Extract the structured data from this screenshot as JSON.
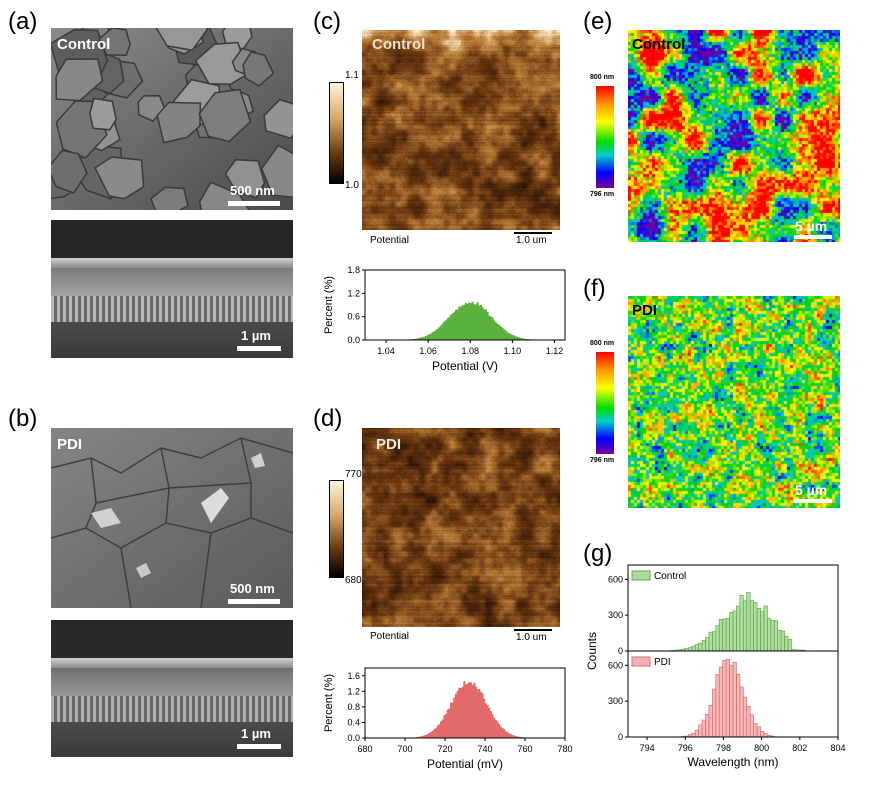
{
  "panels": {
    "a": {
      "label": "(a)",
      "title": "Control",
      "scale_top": "500 nm",
      "scale_bottom": "1 µm"
    },
    "b": {
      "label": "(b)",
      "title": "PDI",
      "scale_top": "500 nm",
      "scale_bottom": "1 µm"
    },
    "c": {
      "label": "(c)",
      "title": "Control",
      "cbar_max": "1.1 V",
      "cbar_min": "1.0 V",
      "channel": "Potential",
      "scale": "1.0 um"
    },
    "d": {
      "label": "(d)",
      "title": "PDI",
      "cbar_max": "770.0 mV",
      "cbar_min": "680.0 mV",
      "channel": "Potential",
      "scale": "1.0 um"
    },
    "e": {
      "label": "(e)",
      "title": "Control",
      "cbar_max": "800 nm",
      "cbar_min": "796 nm",
      "scale": "5 µm"
    },
    "f": {
      "label": "(f)",
      "title": "PDI",
      "cbar_max": "800 nm",
      "cbar_min": "796 nm",
      "scale": "5 µm"
    },
    "g": {
      "label": "(g)"
    }
  },
  "colors": {
    "green": "#5bb13d",
    "red": "#e46a6a",
    "afm_dark": "#3a1d08",
    "afm_light": "#d9a96a"
  },
  "chart_data": [
    {
      "id": "c-hist",
      "type": "area",
      "xlabel": "Potential (V)",
      "ylabel": "Percent (%)",
      "xlim": [
        1.03,
        1.125
      ],
      "ylim": [
        0,
        1.8
      ],
      "xticks": [
        "1.04",
        "1.06",
        "1.08",
        "1.10",
        "1.12"
      ],
      "yticks": [
        "0.0",
        "0.6",
        "1.2",
        "1.8"
      ],
      "distribution": {
        "center": 1.08,
        "sigma": 0.01,
        "peak": 1.0
      },
      "color": "#5bb13d"
    },
    {
      "id": "d-hist",
      "type": "area",
      "xlabel": "Potential (mV)",
      "ylabel": "Percent (%)",
      "xlim": [
        680,
        780
      ],
      "ylim": [
        0,
        1.8
      ],
      "xticks": [
        "680",
        "700",
        "720",
        "740",
        "760",
        "780"
      ],
      "yticks": [
        "0.0",
        "0.4",
        "0.8",
        "1.2",
        "1.6"
      ],
      "distribution": {
        "center": 732,
        "sigma": 9,
        "peak": 1.48
      },
      "color": "#e46a6a"
    },
    {
      "id": "g-hist",
      "type": "bar",
      "xlabel": "Wavelength (nm)",
      "ylabel": "Counts",
      "xlim": [
        793,
        804
      ],
      "xticks": [
        "794",
        "796",
        "798",
        "800",
        "802",
        "804"
      ],
      "yticks": [
        "0",
        "300",
        "600"
      ],
      "ylim": [
        0,
        720
      ],
      "series": [
        {
          "name": "Control",
          "color": "#5bb13d",
          "center": 799.2,
          "sigma": 1.3,
          "peak": 450,
          "cutoff": 801.5
        },
        {
          "name": "PDI",
          "color": "#e46a6a",
          "center": 798.2,
          "sigma": 0.75,
          "peak": 700,
          "cutoff": 802
        }
      ]
    }
  ]
}
